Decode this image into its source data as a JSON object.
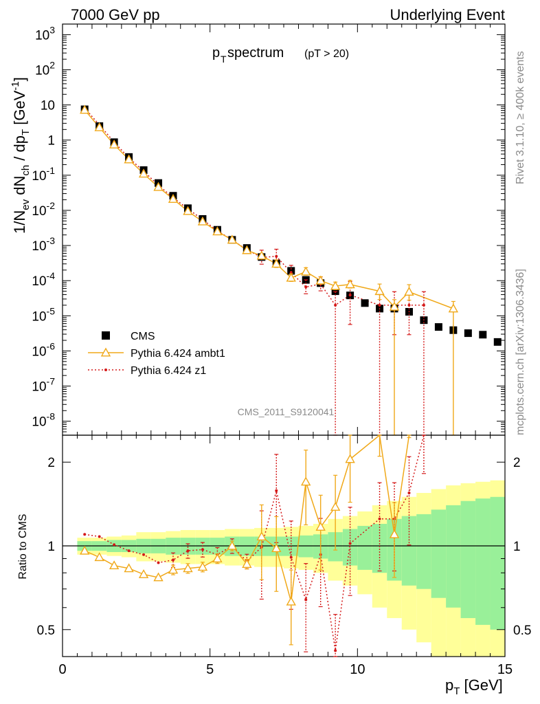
{
  "header": {
    "left": "7000 GeV pp",
    "right": "Underlying Event",
    "side_top": "Rivet 3.1.10, ≥ 400k events",
    "side_bottom": "mcplots.cern.ch [arXiv:1306.3436]"
  },
  "main_plot": {
    "title_main": "p",
    "title_sub": "T",
    "title_rest": " spectrum",
    "title_cut": "(pT > 20)",
    "ylabel": "1/N_ev dN_ch / dp_T [GeV^-1]",
    "analysis_id": "CMS_2011_S9120041"
  },
  "ratio_plot": {
    "ylabel": "Ratio to CMS",
    "xlabel": "p_T [GeV]"
  },
  "legend": [
    {
      "label": "CMS",
      "marker": "square",
      "color": "#000000"
    },
    {
      "label": "Pythia 6.424 ambt1",
      "marker": "open-triangle",
      "color": "#f0a818"
    },
    {
      "label": "Pythia 6.424 z1",
      "marker": "dot-dotted",
      "color": "#d41818"
    }
  ],
  "colors": {
    "data": "#000000",
    "ambt1": "#f0a818",
    "z1": "#d41818",
    "band_inner": "#99f099",
    "band_outer": "#ffff99"
  },
  "chart_data": {
    "type": "scatter",
    "x_axis": {
      "label": "p_T [GeV]",
      "range": [
        0,
        15
      ],
      "ticks": [
        0,
        5,
        10,
        15
      ]
    },
    "y_axis_main": {
      "scale": "log",
      "range": [
        4e-09,
        2000
      ],
      "tick_labels": [
        "10^-8",
        "10^-7",
        "10^-6",
        "10^-5",
        "10^-4",
        "10^-3",
        "10^-2",
        "10^-1",
        "1",
        "10",
        "10^2",
        "10^3"
      ]
    },
    "y_axis_ratio": {
      "scale": "log",
      "range": [
        0.4,
        2.5
      ],
      "ticks": [
        0.5,
        1,
        2
      ]
    },
    "x": [
      0.75,
      1.25,
      1.75,
      2.25,
      2.75,
      3.25,
      3.75,
      4.25,
      4.75,
      5.25,
      5.75,
      6.25,
      6.75,
      7.25,
      7.75,
      8.25,
      8.75,
      9.25,
      9.75,
      10.25,
      10.75,
      11.25,
      11.75,
      12.25,
      12.75,
      13.25,
      13.75,
      14.25,
      14.75
    ],
    "series": [
      {
        "name": "CMS",
        "values": [
          7.5,
          2.5,
          0.87,
          0.33,
          0.14,
          0.06,
          0.026,
          0.0115,
          0.0057,
          0.0028,
          0.00145,
          0.00085,
          0.00047,
          0.00031,
          0.00019,
          0.000105,
          8.5e-05,
          5e-05,
          3.8e-05,
          2.3e-05,
          1.6e-05,
          1.6e-05,
          1.3e-05,
          7.5e-06,
          4.8e-06,
          3.9e-06,
          3.2e-06,
          2.9e-06,
          1.8e-06
        ]
      },
      {
        "name": "Pythia 6.424 ambt1",
        "values": [
          7.2,
          2.3,
          0.74,
          0.28,
          0.11,
          0.046,
          0.021,
          0.0095,
          0.0048,
          0.0025,
          0.00145,
          0.00073,
          0.00051,
          0.0003,
          0.00012,
          0.00018,
          0.0001,
          7e-05,
          7.8e-05,
          null,
          5e-05,
          1.8e-05,
          4.8e-05,
          null,
          null,
          1.6e-05
        ]
      },
      {
        "name": "Pythia 6.424 z1",
        "values": [
          8.2,
          2.7,
          0.88,
          0.31,
          0.13,
          0.052,
          0.023,
          0.011,
          0.0055,
          0.0026,
          0.00145,
          0.00075,
          0.00046,
          0.00049,
          0.00017,
          6.6e-05,
          8e-05,
          2e-05,
          3.9e-05,
          null,
          2e-05,
          2e-05,
          2e-05,
          2e-05
        ]
      }
    ],
    "ratio_series": [
      {
        "name": "Pythia 6.424 ambt1",
        "values": [
          0.96,
          0.91,
          0.85,
          0.83,
          0.79,
          0.77,
          0.82,
          0.83,
          0.84,
          0.9,
          1.0,
          0.86,
          1.08,
          0.98,
          0.63,
          1.7,
          1.17,
          1.38,
          2.05,
          null,
          3.0,
          1.1,
          3.5
        ]
      },
      {
        "name": "Pythia 6.424 z1",
        "values": [
          1.1,
          1.08,
          1.01,
          0.96,
          0.93,
          0.87,
          0.89,
          0.96,
          0.97,
          0.93,
          1.0,
          0.88,
          0.99,
          1.58,
          0.91,
          0.64,
          0.93,
          0.42,
          1.02,
          null,
          1.25,
          1.25,
          1.55,
          2.8
        ]
      }
    ],
    "uncertainty_bands": {
      "inner": [
        0.04,
        0.04,
        0.05,
        0.05,
        0.06,
        0.06,
        0.07,
        0.07,
        0.07,
        0.07,
        0.08,
        0.08,
        0.08,
        0.08,
        0.08,
        0.09,
        0.1,
        0.12,
        0.15,
        0.18,
        0.2,
        0.25,
        0.28,
        0.3,
        0.35,
        0.4,
        0.45,
        0.48,
        0.5
      ],
      "outer": [
        0.07,
        0.07,
        0.08,
        0.09,
        0.12,
        0.12,
        0.13,
        0.14,
        0.14,
        0.14,
        0.15,
        0.15,
        0.16,
        0.16,
        0.17,
        0.18,
        0.2,
        0.25,
        0.28,
        0.33,
        0.4,
        0.45,
        0.5,
        0.55,
        0.6,
        0.65,
        0.68,
        0.7,
        0.72
      ]
    }
  }
}
